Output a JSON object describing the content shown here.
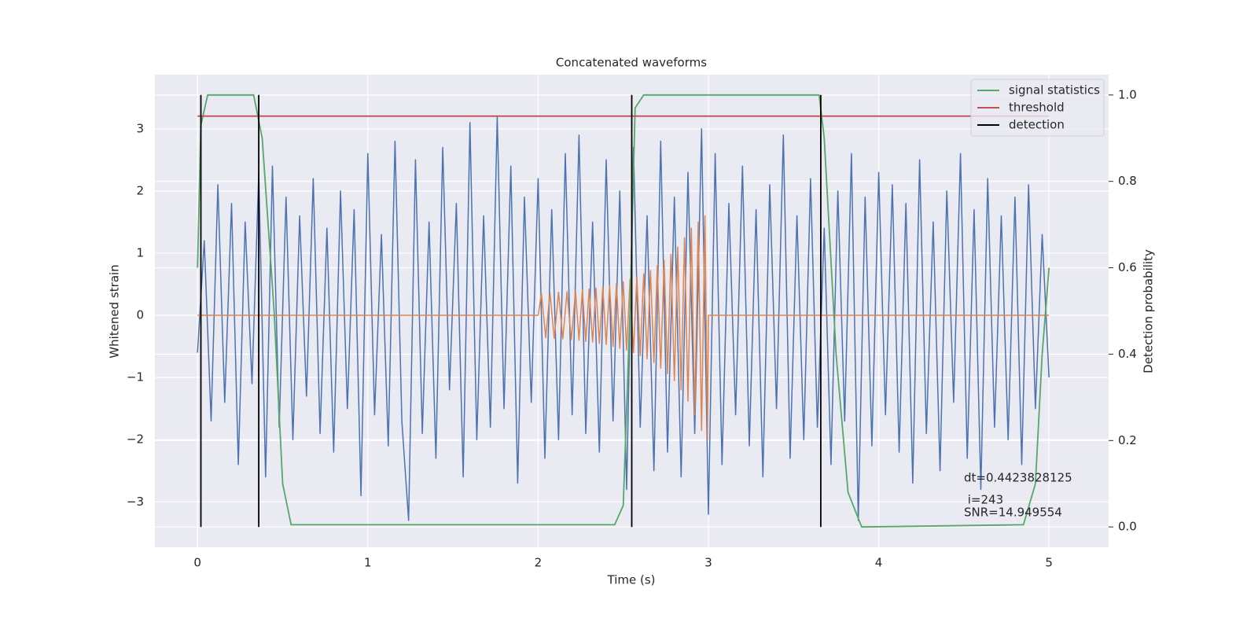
{
  "chart_data": {
    "type": "line",
    "title": "Concatenated waveforms",
    "xlabel": "Time (s)",
    "ylabel": "Whitened strain",
    "y2label": "Detection probability",
    "xlim": [
      -0.25,
      5.35
    ],
    "ylim": [
      -3.73,
      3.87
    ],
    "y2lim": [
      -0.047,
      1.047
    ],
    "xticks": [
      0,
      1,
      2,
      3,
      4,
      5
    ],
    "yticks": [
      {
        "value": -3,
        "label": "−3"
      },
      {
        "value": -2,
        "label": "−2"
      },
      {
        "value": -1,
        "label": "−1"
      },
      0,
      1,
      2,
      3
    ],
    "y2ticks": [
      {
        "value": 0,
        "label": "0.0"
      },
      0.2,
      0.4,
      0.6,
      0.8,
      {
        "value": 1,
        "label": "1.0"
      }
    ],
    "grid": true,
    "legend": "upper right",
    "annotations": [
      "dt=0.4423828125",
      " i=243",
      "SNR=14.949554"
    ],
    "series": [
      {
        "color": "#4c72b0",
        "x": [
          0,
          0.04,
          0.08,
          0.12,
          0.16,
          0.2,
          0.24,
          0.28,
          0.32,
          0.36,
          0.4,
          0.44,
          0.48,
          0.52,
          0.56,
          0.6,
          0.64,
          0.68,
          0.72,
          0.76,
          0.8,
          0.84,
          0.88,
          0.92,
          0.96,
          1,
          1.04,
          1.08,
          1.12,
          1.16,
          1.2,
          1.24,
          1.28,
          1.32,
          1.36,
          1.4,
          1.44,
          1.48,
          1.52,
          1.56,
          1.6,
          1.64,
          1.68,
          1.72,
          1.76,
          1.8,
          1.84,
          1.88,
          1.92,
          1.96,
          2,
          2.04,
          2.08,
          2.12,
          2.16,
          2.2,
          2.24,
          2.28,
          2.32,
          2.36,
          2.4,
          2.44,
          2.48,
          2.52,
          2.56,
          2.6,
          2.64,
          2.68,
          2.72,
          2.76,
          2.8,
          2.84,
          2.88,
          2.92,
          2.96,
          3,
          3.04,
          3.08,
          3.12,
          3.16,
          3.2,
          3.24,
          3.28,
          3.32,
          3.36,
          3.4,
          3.44,
          3.48,
          3.52,
          3.56,
          3.6,
          3.64,
          3.68,
          3.72,
          3.76,
          3.8,
          3.84,
          3.88,
          3.92,
          3.96,
          4,
          4.04,
          4.08,
          4.12,
          4.16,
          4.2,
          4.24,
          4.28,
          4.32,
          4.36,
          4.4,
          4.44,
          4.48,
          4.52,
          4.56,
          4.6,
          4.64,
          4.68,
          4.72,
          4.76,
          4.8,
          4.84,
          4.88,
          4.92,
          4.96,
          5
        ],
        "values": [
          -0.6,
          1.2,
          -1.7,
          2.1,
          -1.4,
          1.8,
          -2.4,
          1.5,
          -1.1,
          2.3,
          -2.6,
          2.4,
          -1.8,
          1.9,
          -2.0,
          1.6,
          -1.3,
          2.2,
          -1.9,
          1.4,
          -2.2,
          2.0,
          -1.5,
          1.7,
          -2.9,
          2.6,
          -1.6,
          1.3,
          -2.1,
          2.8,
          -1.7,
          -3.3,
          2.5,
          -1.9,
          1.5,
          -2.3,
          2.7,
          -1.2,
          1.8,
          -2.6,
          3.1,
          -2.0,
          1.6,
          -1.8,
          3.2,
          -1.5,
          2.4,
          -2.7,
          1.9,
          -1.4,
          2.2,
          -2.3,
          1.7,
          -2.0,
          2.6,
          -1.6,
          2.9,
          -1.9,
          1.5,
          -2.2,
          2.5,
          -1.7,
          2.0,
          -2.8,
          2.7,
          -1.8,
          1.6,
          -2.5,
          2.8,
          -2.2,
          1.9,
          -2.6,
          2.3,
          -1.9,
          3.0,
          -3.2,
          2.6,
          -2.4,
          1.8,
          -1.6,
          2.4,
          -2.1,
          1.7,
          -2.6,
          2.1,
          -1.5,
          2.9,
          -2.3,
          1.6,
          -2.0,
          2.2,
          -1.8,
          1.4,
          -2.4,
          2.0,
          -1.7,
          2.6,
          -3.3,
          1.9,
          -2.1,
          2.3,
          -1.6,
          2.1,
          -2.2,
          1.8,
          -2.7,
          2.5,
          -1.9,
          1.5,
          -2.5,
          2.0,
          -1.4,
          2.6,
          -2.3,
          1.7,
          -2.8,
          2.2,
          -1.8,
          1.6,
          -2.0,
          1.9,
          -2.4,
          2.1,
          -1.5,
          1.3,
          -1.0
        ]
      },
      {
        "color": "#dd8452",
        "x": [
          0,
          2,
          2.02,
          2.045,
          2.07,
          2.095,
          2.12,
          2.145,
          2.17,
          2.195,
          2.22,
          2.24,
          2.26,
          2.28,
          2.3,
          2.32,
          2.34,
          2.36,
          2.38,
          2.4,
          2.42,
          2.44,
          2.46,
          2.48,
          2.5,
          2.52,
          2.54,
          2.56,
          2.58,
          2.6,
          2.62,
          2.64,
          2.66,
          2.68,
          2.7,
          2.72,
          2.74,
          2.76,
          2.78,
          2.8,
          2.82,
          2.84,
          2.86,
          2.88,
          2.9,
          2.92,
          2.94,
          2.96,
          2.98,
          2.995,
          3,
          5
        ],
        "values": [
          0,
          0,
          0.35,
          -0.36,
          0.36,
          -0.37,
          0.37,
          -0.38,
          0.38,
          -0.39,
          0.39,
          -0.4,
          0.41,
          -0.42,
          0.42,
          -0.43,
          0.44,
          -0.45,
          0.46,
          -0.47,
          0.48,
          -0.5,
          0.51,
          -0.53,
          0.54,
          -0.56,
          0.58,
          -0.6,
          0.62,
          -0.65,
          0.67,
          -0.7,
          0.72,
          -0.76,
          0.8,
          -0.85,
          0.88,
          -0.94,
          0.98,
          -1.05,
          1.1,
          -1.2,
          1.25,
          -1.38,
          1.4,
          -1.6,
          1.5,
          -1.85,
          1.6,
          -2.0,
          0,
          0
        ]
      },
      {
        "name": "signal statistics",
        "color": "#55a868",
        "axis": "y2",
        "x": [
          0,
          0.02,
          0.06,
          0.33,
          0.38,
          0.45,
          0.5,
          0.55,
          2.45,
          2.5,
          2.54,
          2.57,
          2.62,
          3.65,
          3.68,
          3.75,
          3.82,
          3.9,
          4.85,
          4.92,
          4.96,
          5
        ],
        "values": [
          0.6,
          0.93,
          1.0,
          1.0,
          0.9,
          0.5,
          0.1,
          0.005,
          0.005,
          0.05,
          0.5,
          0.97,
          1.0,
          1.0,
          0.9,
          0.4,
          0.08,
          0.0,
          0.005,
          0.1,
          0.4,
          0.6
        ]
      },
      {
        "name": "threshold",
        "color": "#c44e52",
        "axis": "y2",
        "x": [
          0,
          5
        ],
        "values": [
          0.951,
          0.951
        ]
      },
      {
        "name": "detection",
        "color": "#000000",
        "axis": "y2",
        "x": [
          0.02,
          0.02,
          null,
          0.36,
          0.36,
          null,
          2.55,
          2.55,
          null,
          3.66,
          3.66
        ],
        "values": [
          0,
          1,
          null,
          0,
          1,
          null,
          0,
          1,
          null,
          0,
          1
        ]
      }
    ]
  }
}
